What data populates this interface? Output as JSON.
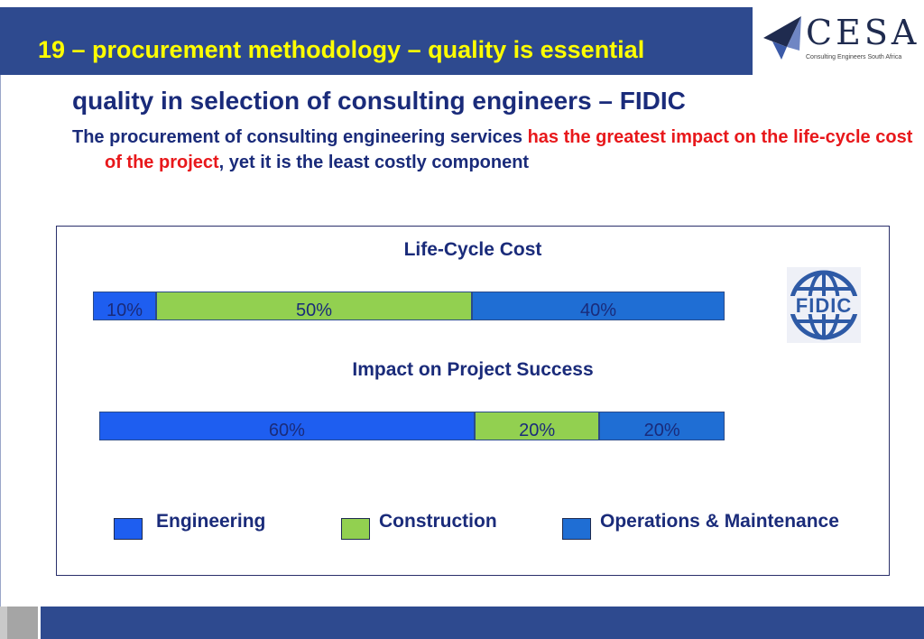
{
  "slide": {
    "title": "19 – procurement methodology – quality is essential",
    "subtitle": "quality in selection of consulting engineers – FIDIC",
    "paragraph": {
      "part1": "The procurement of consulting engineering services ",
      "highlight": "has the greatest impact on the life-cycle cost of the project",
      "part2": ", yet it is the least costly component"
    }
  },
  "logo": {
    "wordmark": "CESA",
    "tagline": "Consulting Engineers South Africa",
    "fidic_label": "FIDIC"
  },
  "colors": {
    "engineering": "#1e5ef0",
    "construction": "#92d050",
    "operations": "#1f6ed4",
    "highlight": "#e8181b",
    "title_bar": "#2e4a8f"
  },
  "chart_data": {
    "type": "bar",
    "orientation": "horizontal-stacked-100",
    "series_names": [
      "Engineering",
      "Construction",
      "Operations & Maintenance"
    ],
    "charts": [
      {
        "title": "Life-Cycle Cost",
        "values": [
          10,
          50,
          40
        ],
        "labels": [
          "10%",
          "50%",
          "40%"
        ]
      },
      {
        "title": "Impact on Project Success",
        "values": [
          60,
          20,
          20
        ],
        "labels": [
          "60%",
          "20%",
          "20%"
        ]
      }
    ],
    "legend": {
      "placement": "bottom",
      "items": [
        "Engineering",
        "Construction",
        "Operations & Maintenance"
      ]
    }
  }
}
